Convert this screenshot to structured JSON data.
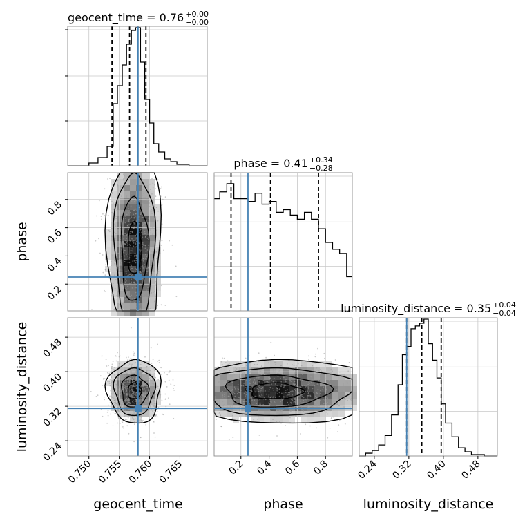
{
  "chart_data": {
    "type": "corner",
    "parameters": [
      "geocent_time",
      "phase",
      "luminosity_distance"
    ],
    "axis_labels": [
      "geocent_time",
      "phase",
      "luminosity_distance"
    ],
    "ranges": [
      [
        0.7465,
        0.7695
      ],
      [
        0.01,
        0.99
      ],
      [
        0.205,
        0.525
      ]
    ],
    "tick_labels": {
      "geocent_time": [
        "0.750",
        "0.755",
        "0.760",
        "0.765"
      ],
      "phase": [
        "0.2",
        "0.4",
        "0.6",
        "0.8"
      ],
      "luminosity_distance": [
        "0.24",
        "0.32",
        "0.40",
        "0.48"
      ]
    },
    "ticks": {
      "geocent_time": [
        0.75,
        0.755,
        0.76,
        0.765
      ],
      "phase": [
        0.2,
        0.4,
        0.6,
        0.8
      ],
      "luminosity_distance": [
        0.24,
        0.32,
        0.4,
        0.48
      ]
    },
    "titles": [
      {
        "text": "geocent_time = 0.76",
        "sup": "+0.00",
        "sub": "−0.00"
      },
      {
        "text": "phase = 0.41",
        "sup": "+0.34",
        "sub": "−0.28"
      },
      {
        "text": "luminosity_distance = 0.35",
        "sup": "+0.04",
        "sub": "−0.04"
      }
    ],
    "truths": [
      0.7581,
      0.25,
      0.315
    ],
    "quantiles": {
      "geocent_time": [
        0.7538,
        0.7567,
        0.7594
      ],
      "phase": [
        0.13,
        0.41,
        0.75
      ],
      "luminosity_distance": [
        0.315,
        0.35,
        0.395
      ]
    },
    "histograms_1d": {
      "geocent_time": {
        "edges": [
          0.7465,
          0.75,
          0.7515,
          0.753,
          0.754,
          0.7547,
          0.7555,
          0.7562,
          0.757,
          0.7577,
          0.7585,
          0.7592,
          0.76,
          0.7607,
          0.7615,
          0.7625,
          0.7635,
          0.7645,
          0.7655,
          0.7665,
          0.7675,
          0.7695
        ],
        "counts": [
          0,
          0.02,
          0.06,
          0.14,
          0.45,
          0.58,
          0.73,
          0.88,
          0.98,
          1.0,
          0.75,
          0.48,
          0.31,
          0.16,
          0.1,
          0.05,
          0.03,
          0.01,
          0.01,
          0,
          0
        ]
      },
      "phase": {
        "edges": [
          0.01,
          0.05,
          0.1,
          0.15,
          0.2,
          0.25,
          0.3,
          0.35,
          0.4,
          0.45,
          0.5,
          0.55,
          0.6,
          0.65,
          0.7,
          0.75,
          0.8,
          0.85,
          0.9,
          0.95,
          0.99
        ],
        "counts": [
          0.82,
          0.87,
          0.93,
          0.82,
          0.82,
          0.8,
          0.86,
          0.78,
          0.8,
          0.72,
          0.74,
          0.7,
          0.67,
          0.72,
          0.67,
          0.6,
          0.5,
          0.45,
          0.42,
          0.25
        ]
      },
      "luminosity_distance": {
        "edges": [
          0.205,
          0.22,
          0.235,
          0.25,
          0.265,
          0.28,
          0.295,
          0.305,
          0.315,
          0.325,
          0.335,
          0.345,
          0.355,
          0.365,
          0.375,
          0.385,
          0.395,
          0.405,
          0.42,
          0.435,
          0.45,
          0.465,
          0.48,
          0.495,
          0.51,
          0.525
        ],
        "counts": [
          0,
          0.02,
          0.04,
          0.08,
          0.15,
          0.3,
          0.52,
          0.74,
          0.8,
          0.93,
          0.95,
          0.97,
          1.0,
          0.82,
          0.7,
          0.57,
          0.38,
          0.24,
          0.14,
          0.06,
          0.03,
          0.01,
          0.01,
          0,
          0
        ]
      }
    },
    "histograms_2d": [
      {
        "x": "geocent_time",
        "y": "phase",
        "x_center": 0.7575,
        "x_sigma": 0.0021,
        "y_center": 0.45,
        "y_sigma": 0.35,
        "shape": "vertical band"
      },
      {
        "x": "geocent_time",
        "y": "luminosity_distance",
        "x_center": 0.7575,
        "x_sigma": 0.0021,
        "y_center": 0.355,
        "y_sigma": 0.035,
        "shape": "ellipse"
      },
      {
        "x": "phase",
        "y": "luminosity_distance",
        "x_center": 0.45,
        "x_sigma": 0.35,
        "y_center": 0.355,
        "y_sigma": 0.035,
        "shape": "horizontal band"
      }
    ],
    "grid": true,
    "colors": {
      "truth": "#4682b4",
      "hist": "#000000",
      "quantile": "#000000",
      "grid": "#c8c8c8",
      "points": "#9e9e9e"
    }
  }
}
